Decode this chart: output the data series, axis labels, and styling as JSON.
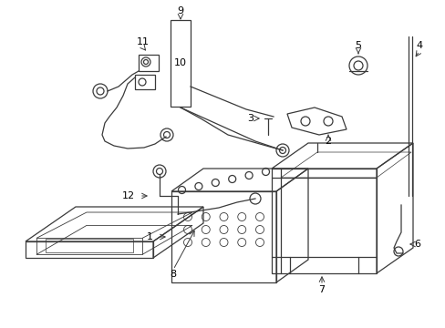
{
  "background_color": "#ffffff",
  "line_color": "#3a3a3a",
  "figsize": [
    4.89,
    3.6
  ],
  "dpi": 100,
  "xlim": [
    0,
    489
  ],
  "ylim": [
    0,
    360
  ]
}
